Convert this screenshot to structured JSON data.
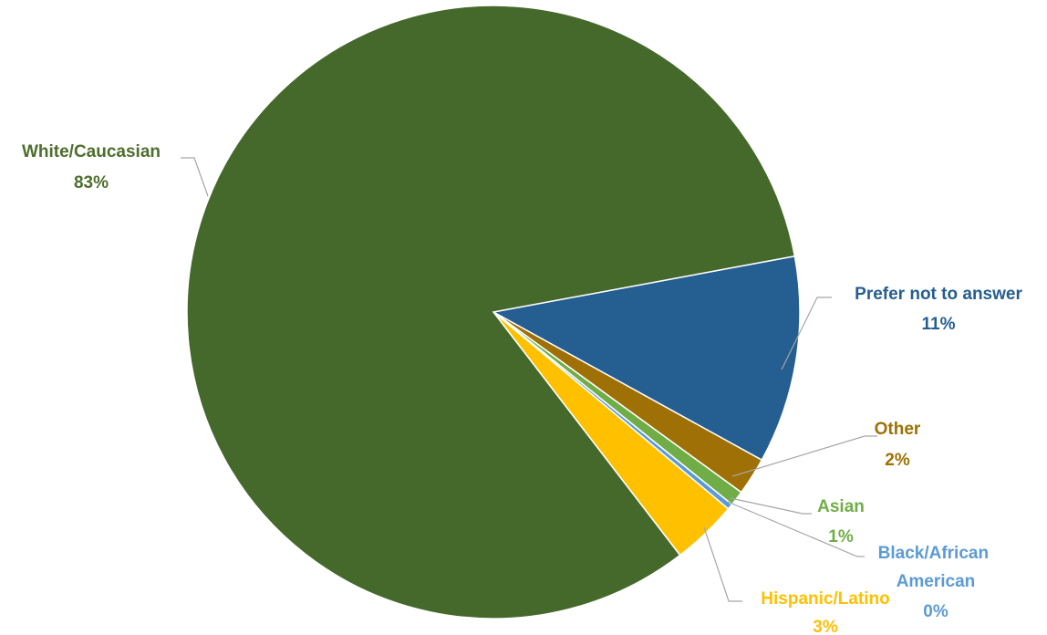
{
  "chart_data": {
    "type": "pie",
    "title": "",
    "slices": [
      {
        "label": "White/Caucasian",
        "value": 83,
        "pct_label": "83%",
        "color": "#45682b",
        "label_color": "#4e6e2d"
      },
      {
        "label": "Prefer not to answer",
        "value": 11,
        "pct_label": "11%",
        "color": "#255e91",
        "label_color": "#255e91"
      },
      {
        "label": "Other",
        "value": 2,
        "pct_label": "2%",
        "color": "#9e7005",
        "label_color": "#9e7005"
      },
      {
        "label": "Asian",
        "value": 0.8,
        "pct_label": "1%",
        "color": "#70ad47",
        "label_color": "#70ad47"
      },
      {
        "label": "Black/African American",
        "value": 0.3,
        "pct_label": "0%",
        "color": "#5b9bd5",
        "label_color": "#5b9bd5"
      },
      {
        "label": "Hispanic/Latino",
        "value": 3.5,
        "pct_label": "3%",
        "color": "#ffc000",
        "label_color": "#ffc000"
      }
    ],
    "legend": "none",
    "leader_line_color": "#a6a6a6"
  }
}
